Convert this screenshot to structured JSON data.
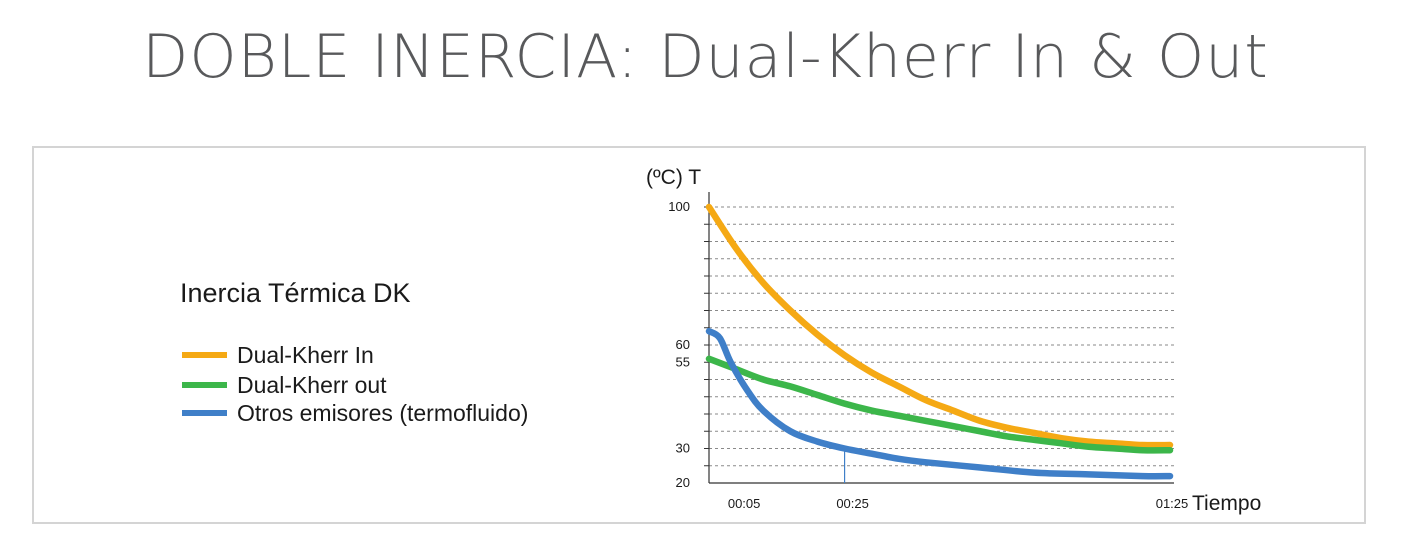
{
  "title": "DOBLE INERCIA: Dual-Kherr In & Out",
  "legend": {
    "title": "Inercia Térmica DK",
    "items": [
      {
        "label": "Dual-Kherr In",
        "color": "#f5a914"
      },
      {
        "label": "Dual-Kherr out",
        "color": "#3cb64a"
      },
      {
        "label": "Otros emisores (termofluido)",
        "color": "#3f7fc8"
      }
    ]
  },
  "chart_data": {
    "type": "line",
    "title": "",
    "xlabel": "Tiempo",
    "ylabel": "(ºC) T",
    "xlim": [
      0,
      85
    ],
    "ylim": [
      20,
      100
    ],
    "grid": "horizontal-dashed",
    "x_ticks": [
      {
        "value": 5,
        "label": "00:05"
      },
      {
        "value": 25,
        "label": "00:25"
      },
      {
        "value": 85,
        "label": "01:25"
      }
    ],
    "y_ticks": [
      {
        "value": 100,
        "label": "100"
      },
      {
        "value": 60,
        "label": "60"
      },
      {
        "value": 55,
        "label": "55"
      },
      {
        "value": 30,
        "label": "30"
      },
      {
        "value": 20,
        "label": "20"
      }
    ],
    "marker_line": {
      "x": 25
    },
    "series": [
      {
        "name": "Dual-Kherr In",
        "color": "#f5a914",
        "points": [
          [
            0,
            100
          ],
          [
            5,
            88
          ],
          [
            10,
            78
          ],
          [
            15,
            70
          ],
          [
            20,
            63
          ],
          [
            25,
            57
          ],
          [
            30,
            52
          ],
          [
            35,
            48
          ],
          [
            40,
            44
          ],
          [
            45,
            41
          ],
          [
            50,
            38
          ],
          [
            55,
            36
          ],
          [
            60,
            34.5
          ],
          [
            65,
            33
          ],
          [
            70,
            32
          ],
          [
            75,
            31.5
          ],
          [
            80,
            31
          ],
          [
            85,
            31
          ]
        ]
      },
      {
        "name": "Dual-Kherr out",
        "color": "#3cb64a",
        "points": [
          [
            0,
            56
          ],
          [
            5,
            53
          ],
          [
            10,
            50
          ],
          [
            15,
            48
          ],
          [
            20,
            45.5
          ],
          [
            25,
            43
          ],
          [
            30,
            41
          ],
          [
            35,
            39.5
          ],
          [
            40,
            38
          ],
          [
            45,
            36.5
          ],
          [
            50,
            35
          ],
          [
            55,
            33.5
          ],
          [
            60,
            32.5
          ],
          [
            65,
            31.5
          ],
          [
            70,
            30.5
          ],
          [
            75,
            30
          ],
          [
            80,
            29.5
          ],
          [
            85,
            29.5
          ]
        ]
      },
      {
        "name": "Otros emisores (termofluido)",
        "color": "#3f7fc8",
        "points": [
          [
            0,
            64
          ],
          [
            2,
            62
          ],
          [
            4,
            55
          ],
          [
            7,
            47
          ],
          [
            10,
            41
          ],
          [
            15,
            35
          ],
          [
            20,
            32
          ],
          [
            25,
            30
          ],
          [
            30,
            28.5
          ],
          [
            35,
            27
          ],
          [
            40,
            26
          ],
          [
            50,
            24.5
          ],
          [
            60,
            23
          ],
          [
            70,
            22.5
          ],
          [
            80,
            22
          ],
          [
            85,
            22
          ]
        ]
      }
    ]
  }
}
